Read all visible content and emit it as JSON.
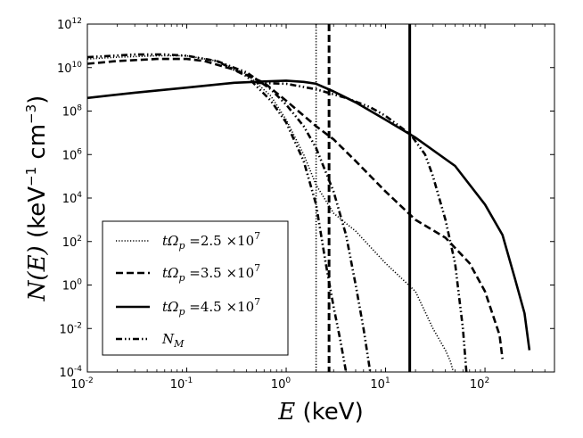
{
  "chart_data": {
    "type": "line",
    "xscale": "log",
    "yscale": "log",
    "xlim": [
      0.01,
      500
    ],
    "ylim": [
      0.0001,
      1000000000000
    ],
    "x_ticks": [
      {
        "base": "10",
        "exp": "-2"
      },
      {
        "base": "10",
        "exp": "-1"
      },
      {
        "base": "10",
        "exp": "0"
      },
      {
        "base": "10",
        "exp": "1"
      },
      {
        "base": "10",
        "exp": "2"
      }
    ],
    "x_tick_values": [
      0.01,
      0.1,
      1,
      10,
      100
    ],
    "y_ticks": [
      {
        "base": "10",
        "exp": "-4"
      },
      {
        "base": "10",
        "exp": "-2"
      },
      {
        "base": "10",
        "exp": "0"
      },
      {
        "base": "10",
        "exp": "2"
      },
      {
        "base": "10",
        "exp": "4"
      },
      {
        "base": "10",
        "exp": "6"
      },
      {
        "base": "10",
        "exp": "8"
      },
      {
        "base": "10",
        "exp": "10"
      },
      {
        "base": "10",
        "exp": "12"
      }
    ],
    "y_tick_values": [
      0.0001,
      0.01,
      1,
      100,
      10000,
      1000000,
      100000000,
      10000000000,
      1000000000000
    ],
    "xlabel": {
      "var": "E",
      "unit": "(keV)"
    },
    "ylabel": {
      "var": "N(E)",
      "unit_pre": "(keV",
      "unit_exp1": "−1",
      "unit_mid": " cm",
      "unit_exp2": "−3",
      "unit_post": ")"
    },
    "legend_position": "lower-left",
    "series": [
      {
        "label": "tΩp =2.5 ×10^7",
        "style": "dotted",
        "x": [
          0.01,
          0.02,
          0.05,
          0.1,
          0.2,
          0.4,
          0.7,
          1.0,
          1.5,
          2.0,
          3.0,
          5.0,
          10.0,
          20.0,
          30.0,
          40.0,
          45.0,
          48.0
        ],
        "y": [
          25000000000,
          30000000000,
          35000000000,
          35000000000,
          20000000000,
          5000000000,
          500000000,
          40000000,
          1000000,
          40000,
          2000,
          300,
          10,
          0.5,
          0.01,
          0.001,
          0.0003,
          0.0001
        ],
        "marker_x": 2.0
      },
      {
        "label": "tΩp =3.5 ×10^7",
        "style": "dashed",
        "x": [
          0.01,
          0.02,
          0.05,
          0.1,
          0.15,
          0.3,
          0.6,
          1.0,
          2.0,
          3.0,
          5.0,
          10.0,
          20.0,
          40.0,
          70.0,
          100.0,
          140.0,
          150.0
        ],
        "y": [
          15000000000,
          20000000000,
          25000000000,
          25000000000,
          20000000000,
          8000000000,
          2000000000,
          300000000,
          20000000,
          5000000,
          500000,
          20000,
          1000,
          150,
          10,
          0.5,
          0.005,
          0.0004
        ],
        "marker_x": 2.7
      },
      {
        "label": "tΩp =4.5 ×10^7",
        "style": "solid",
        "x": [
          0.01,
          0.03,
          0.1,
          0.3,
          0.6,
          1.0,
          1.5,
          2.0,
          3.0,
          5.0,
          10.0,
          20.0,
          50.0,
          100.0,
          150.0,
          200.0,
          250.0,
          280.0
        ],
        "y": [
          400000000,
          700000000,
          1200000000,
          2000000000,
          2300000000,
          2500000000,
          2200000000,
          1800000000,
          800000000,
          250000000,
          40000000,
          6000000,
          300000,
          5000,
          200,
          2,
          0.05,
          0.001
        ],
        "marker_x": 17.5
      },
      {
        "label": "N_M",
        "style": "dashdotdot",
        "curves": [
          {
            "x": [
              0.01,
              0.03,
              0.06,
              0.1,
              0.2,
              0.4,
              0.7,
              1.0,
              1.5,
              2.0,
              2.5,
              3.0,
              3.5,
              4.0
            ],
            "y": [
              30000000000,
              40000000000,
              40000000000,
              35000000000,
              20000000000,
              4000000000,
              300000000,
              30000000,
              500000,
              5000,
              10,
              0.1,
              0.003,
              0.0001
            ]
          },
          {
            "x": [
              0.2,
              0.4,
              0.7,
              1.0,
              1.5,
              2.0,
              3.0,
              4.0,
              5.0,
              6.0,
              7.0
            ],
            "y": [
              20000000000,
              6000000000,
              1000000000,
              200000000,
              20000000,
              2000000,
              20000,
              200,
              1,
              0.01,
              0.0001
            ]
          },
          {
            "x": [
              0.5,
              1.0,
              2.0,
              4.0,
              7.0,
              10.0,
              15.0,
              18.0,
              25.0,
              30.0,
              40.0,
              50.0,
              60.0,
              65.0
            ],
            "y": [
              2000000000,
              1800000000,
              1000000000,
              400000000,
              150000000,
              60000000,
              15000000,
              8000000,
              1000000,
              100000,
              1000,
              10,
              0.01,
              0.0001
            ]
          }
        ]
      }
    ],
    "legend": [
      {
        "pre": "tΩ",
        "sub": "p",
        "post": " =2.5 ×10",
        "sup": "7",
        "style": "dotted"
      },
      {
        "pre": "tΩ",
        "sub": "p",
        "post": " =3.5 ×10",
        "sup": "7",
        "style": "dashed"
      },
      {
        "pre": "tΩ",
        "sub": "p",
        "post": " =4.5 ×10",
        "sup": "7",
        "style": "solid"
      },
      {
        "pre": "N",
        "sub": "M",
        "post": "",
        "sup": "",
        "style": "dashdotdot"
      }
    ],
    "line_color": "#000000"
  }
}
